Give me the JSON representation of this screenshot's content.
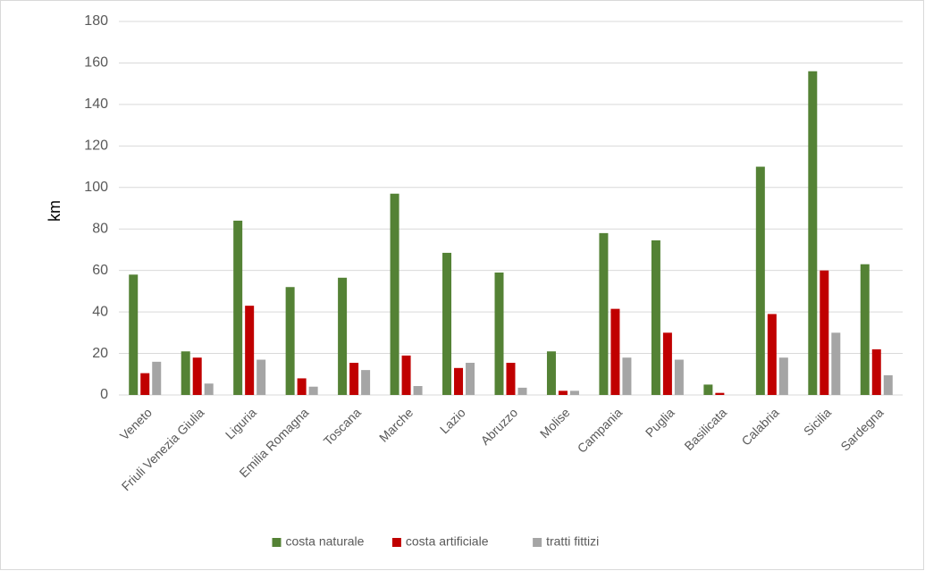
{
  "chart_data": {
    "type": "bar",
    "y_label": "km",
    "categories": [
      "Veneto",
      "Friuli Venezia Giulia",
      "Liguria",
      "Emilia Romagna",
      "Toscana",
      "Marche",
      "Lazio",
      "Abruzzo",
      "Molise",
      "Campania",
      "Puglia",
      "Basilicata",
      "Calabria",
      "Sicilia",
      "Sardegna"
    ],
    "series": [
      {
        "name": "costa naturale",
        "color": "#548235",
        "values": [
          58,
          21,
          84,
          52,
          56.5,
          97,
          68.5,
          59,
          21,
          78,
          74.5,
          5,
          110,
          156,
          63
        ]
      },
      {
        "name": "costa artificiale",
        "color": "#c00000",
        "values": [
          10.5,
          18,
          43,
          8,
          15.5,
          19,
          13,
          15.5,
          2,
          41.5,
          30,
          1,
          39,
          60,
          22
        ]
      },
      {
        "name": "tratti fittizi",
        "color": "#a5a5a5",
        "values": [
          16,
          5.5,
          17,
          4,
          12,
          4.3,
          15.5,
          3.5,
          2,
          18,
          17,
          0,
          18,
          30,
          9.5
        ]
      }
    ],
    "ylim": [
      0,
      180
    ],
    "yticks": [
      0,
      20,
      40,
      60,
      80,
      100,
      120,
      140,
      160,
      180
    ],
    "grid": true,
    "legend": "bottom"
  }
}
